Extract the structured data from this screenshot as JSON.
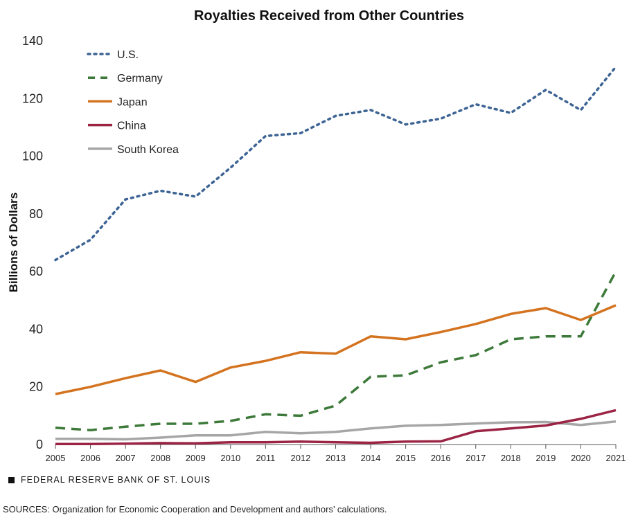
{
  "chart_data": {
    "type": "line",
    "title": "Royalties Received from Other Countries",
    "xlabel": "",
    "ylabel": "Billions of Dollars",
    "ylim": [
      0,
      140
    ],
    "yticks": [
      0,
      20,
      40,
      60,
      80,
      100,
      120,
      140
    ],
    "x": [
      "2005",
      "2006",
      "2007",
      "2008",
      "2009",
      "2010",
      "2011",
      "2012",
      "2013",
      "2014",
      "2015",
      "2016",
      "2017",
      "2018",
      "2019",
      "2020",
      "2021"
    ],
    "grid": false,
    "legend_position": "top-left",
    "series": [
      {
        "name": "U.S.",
        "color": "#3d6494",
        "style": "dotted",
        "values": [
          64,
          71,
          85,
          88,
          86,
          96,
          107,
          108,
          114,
          116,
          111,
          113,
          118,
          115,
          123,
          116,
          131
        ]
      },
      {
        "name": "Germany",
        "color": "#3d7a3a",
        "style": "dashed",
        "values": [
          5.8,
          5,
          6.2,
          7.2,
          7.2,
          8.2,
          10.5,
          10,
          13.5,
          23.5,
          24,
          28.5,
          31,
          36.5,
          37.5,
          37.5,
          60
        ]
      },
      {
        "name": "Japan",
        "color": "#d4731f",
        "style": "solid",
        "values": [
          17.5,
          20,
          23,
          25.7,
          21.7,
          26.7,
          29,
          32,
          31.5,
          37.5,
          36.5,
          39,
          41.8,
          45.3,
          47.3,
          43.2,
          48.3
        ]
      },
      {
        "name": "China",
        "color": "#9b2445",
        "style": "solid",
        "values": [
          0.2,
          0.2,
          0.3,
          0.5,
          0.4,
          0.8,
          0.8,
          1,
          0.8,
          0.6,
          1,
          1.1,
          4.6,
          5.6,
          6.6,
          8.9,
          11.9
        ]
      },
      {
        "name": "South Korea",
        "color": "#a6a6a6",
        "style": "solid",
        "values": [
          2,
          2,
          1.8,
          2.4,
          3.2,
          3.2,
          4.4,
          3.9,
          4.4,
          5.6,
          6.5,
          6.8,
          7.3,
          7.7,
          7.8,
          6.8,
          8
        ]
      }
    ]
  },
  "footer": {
    "brand": "FEDERAL RESERVE BANK OF ST. LOUIS",
    "source": "SOURCES: Organization for Economic Cooperation and Development and authors’ calculations."
  }
}
